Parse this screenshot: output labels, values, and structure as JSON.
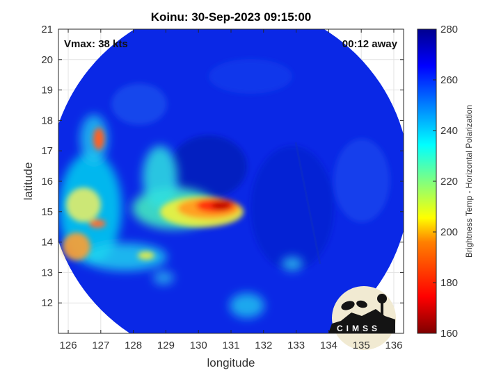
{
  "title": "Koinu: 30-Sep-2023 09:15:00",
  "vmax_text": "Vmax: 38 kts",
  "away_text": "00:12 away",
  "xlabel": "longitude",
  "ylabel": "latitude",
  "x_ticks": [
    "126",
    "127",
    "128",
    "129",
    "130",
    "131",
    "132",
    "133",
    "134",
    "135",
    "136"
  ],
  "y_ticks": [
    "21",
    "20",
    "19",
    "18",
    "17",
    "16",
    "15",
    "14",
    "13",
    "12"
  ],
  "colorbar": {
    "label": "Brightness Temp - Horizontal Polarization",
    "ticks": [
      "280",
      "260",
      "240",
      "220",
      "200",
      "180",
      "160"
    ],
    "range": [
      160,
      280
    ],
    "colors": [
      "#7f0000",
      "#ff0000",
      "#ff8000",
      "#ffff00",
      "#80ff80",
      "#00ffff",
      "#0080ff",
      "#0000ff",
      "#00008f"
    ]
  },
  "logo_text": "CIMSS",
  "map": {
    "xlim": [
      125.7,
      136.3
    ],
    "ylim": [
      11.0,
      21.0
    ],
    "background_color": "#0a28e6",
    "swath_center": [
      130.95,
      15.95
    ],
    "swath_radius_deg": 5.55
  }
}
